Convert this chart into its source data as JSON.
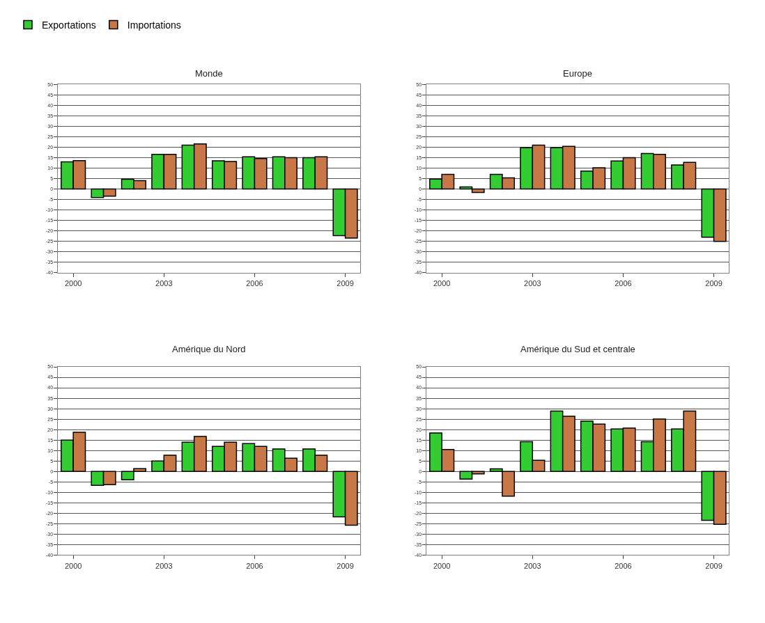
{
  "chart_data": [
    {
      "type": "bar",
      "title": "Monde",
      "categories": [
        "2000",
        null,
        null,
        "2003",
        null,
        null,
        "2006",
        null,
        null,
        "2009"
      ],
      "ylim": [
        -40,
        50
      ],
      "yticks": [
        -40,
        -35,
        -30,
        -25,
        -20,
        -15,
        -10,
        -5,
        0,
        5,
        10,
        15,
        20,
        25,
        30,
        35,
        40,
        45,
        50
      ],
      "grid": "y",
      "legend": "top left",
      "series": [
        {
          "name": "Exportations",
          "color": "#33cc33",
          "values": [
            13,
            -4,
            4.7,
            16.6,
            21,
            13.5,
            15.4,
            15.4,
            15,
            -22.3
          ]
        },
        {
          "name": "Importations",
          "color": "#c87846",
          "values": [
            13.6,
            -3.4,
            4,
            16.6,
            21.6,
            13.2,
            14.6,
            15,
            15.4,
            -23.4
          ]
        }
      ]
    },
    {
      "type": "bar",
      "title": "Europe",
      "categories": [
        "2000",
        null,
        null,
        "2003",
        null,
        null,
        "2006",
        null,
        null,
        "2009"
      ],
      "ylim": [
        -40,
        50
      ],
      "yticks": [
        -40,
        -35,
        -30,
        -25,
        -20,
        -15,
        -10,
        -5,
        0,
        5,
        10,
        15,
        20,
        25,
        30,
        35,
        40,
        45,
        50
      ],
      "grid": "y",
      "series": [
        {
          "color": "#33cc33",
          "values": [
            4.8,
            1,
            7,
            19.8,
            19.8,
            8.6,
            13.4,
            17,
            11.5,
            -23
          ]
        },
        {
          "color": "#c87846",
          "values": [
            7,
            -1.6,
            5.4,
            21,
            20.4,
            10.2,
            15,
            16.6,
            12.8,
            -25
          ]
        }
      ]
    },
    {
      "type": "bar",
      "title": "Amérique du Nord",
      "categories": [
        "2000",
        null,
        null,
        "2003",
        null,
        null,
        "2006",
        null,
        null,
        "2009"
      ],
      "ylim": [
        -40,
        50
      ],
      "yticks": [
        -40,
        -35,
        -30,
        -25,
        -20,
        -15,
        -10,
        -5,
        0,
        5,
        10,
        15,
        20,
        25,
        30,
        35,
        40,
        45,
        50
      ],
      "grid": "y",
      "series": [
        {
          "color": "#33cc33",
          "values": [
            15,
            -6.7,
            -4,
            5,
            14,
            12,
            13.3,
            10.7,
            10.7,
            -21.7
          ]
        },
        {
          "color": "#c87846",
          "values": [
            18.7,
            -6.3,
            1.3,
            7.7,
            16.7,
            14,
            12,
            6.3,
            7.7,
            -25.7
          ]
        }
      ]
    },
    {
      "type": "bar",
      "title": "Amérique du Sud et centrale",
      "categories": [
        "2000",
        null,
        null,
        "2003",
        null,
        null,
        "2006",
        null,
        null,
        "2009"
      ],
      "ylim": [
        -40,
        50
      ],
      "yticks": [
        -40,
        -35,
        -30,
        -25,
        -20,
        -15,
        -10,
        -5,
        0,
        5,
        10,
        15,
        20,
        25,
        30,
        35,
        40,
        45,
        50
      ],
      "grid": "y",
      "series": [
        {
          "color": "#33cc33",
          "values": [
            18.4,
            -3.7,
            1.2,
            14.2,
            28.9,
            24,
            20.3,
            14.2,
            20.3,
            -23.4
          ]
        },
        {
          "color": "#c87846",
          "values": [
            10.5,
            -1.2,
            -11.8,
            5.3,
            26.4,
            22.6,
            20.7,
            25,
            28.9,
            -25.3
          ]
        }
      ]
    }
  ]
}
